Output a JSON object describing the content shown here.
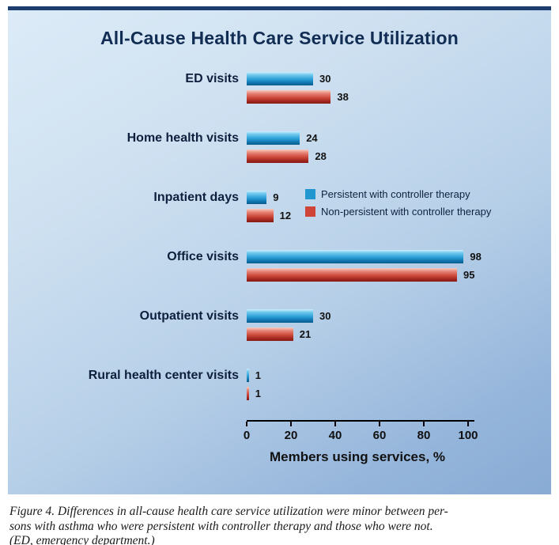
{
  "chart_data": {
    "type": "bar",
    "orientation": "horizontal",
    "title": "All-Cause Health Care Service Utilization",
    "xlabel": "Members using services, %",
    "xlim": [
      0,
      100
    ],
    "xticks": [
      0,
      20,
      40,
      60,
      80,
      100
    ],
    "grid": false,
    "legend_position": "middle-right",
    "categories": [
      "ED visits",
      "Home health visits",
      "Inpatient days",
      "Office visits",
      "Outpatient visits",
      "Rural health center visits"
    ],
    "series": [
      {
        "name": "Persistent with controller therapy",
        "color": "#2196cf",
        "values": [
          30,
          24,
          9,
          98,
          30,
          1
        ]
      },
      {
        "name": "Non-persistent with controller therapy",
        "color": "#cf4438",
        "values": [
          38,
          28,
          12,
          95,
          21,
          1
        ]
      }
    ]
  },
  "caption_lines": [
    "Figure 4. Differences in all-cause health care service utilization were minor between per-",
    "sons with asthma who were persistent with controller therapy and those who were not.",
    "(ED, emergency department.)"
  ],
  "colors": {
    "panel_top_bar": "#1c3d6e",
    "panel_gradient_start": "#dcebf7",
    "panel_gradient_end": "#88abd4",
    "title_text": "#122d54",
    "axis_text": "#111111",
    "bar_blue": "#2196cf",
    "bar_red": "#cf4438"
  }
}
